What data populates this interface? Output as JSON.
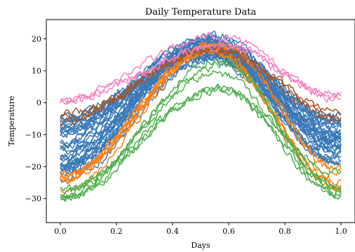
{
  "chart_data": {
    "type": "line",
    "title": "Daily Temperature Data",
    "xlabel": "Days",
    "ylabel": "Temperature",
    "xlim": [
      -0.05,
      1.05
    ],
    "ylim": [
      -37.5,
      26
    ],
    "xticks": [
      0.0,
      0.2,
      0.4,
      0.6,
      0.8,
      1.0
    ],
    "xtick_labels": [
      "0.0",
      "0.2",
      "0.4",
      "0.6",
      "0.8",
      "1.0"
    ],
    "yticks": [
      -30,
      -20,
      -10,
      0,
      10,
      20
    ],
    "ytick_labels": [
      "−30",
      "−20",
      "−10",
      "0",
      "10",
      "20"
    ],
    "grid": false,
    "legend": "none",
    "colors": {
      "blue": "#3a7ab8",
      "orange": "#ff7f0e",
      "green": "#4daf4a",
      "brown": "#a65628",
      "pink": "#f781bf"
    },
    "series_groups": [
      {
        "color": "blue",
        "count": 35,
        "start_range": [
          -25,
          -4
        ],
        "peak_range": [
          14,
          21
        ],
        "end_range": [
          -20,
          -4
        ],
        "peak_x_range": [
          0.5,
          0.57
        ]
      },
      {
        "color": "orange",
        "count": 6,
        "start_range": [
          -28,
          -22
        ],
        "peak_range": [
          15,
          19
        ],
        "end_range": [
          -27,
          -20
        ],
        "peak_x_range": [
          0.53,
          0.58
        ]
      },
      {
        "color": "green",
        "count": 6,
        "start_range": [
          -31,
          -25
        ],
        "peak_range": [
          4,
          15
        ],
        "end_range": [
          -31,
          -22
        ],
        "peak_x_range": [
          0.55,
          0.58
        ]
      },
      {
        "color": "brown",
        "count": 3,
        "start_range": [
          -6,
          -3
        ],
        "peak_range": [
          16,
          18
        ],
        "end_range": [
          -5,
          -2
        ],
        "peak_x_range": [
          0.54,
          0.57
        ]
      },
      {
        "color": "pink",
        "count": 3,
        "start_range": [
          0,
          3
        ],
        "peak_range": [
          17,
          22
        ],
        "end_range": [
          1,
          3
        ],
        "peak_x_range": [
          0.55,
          0.58
        ]
      }
    ]
  }
}
